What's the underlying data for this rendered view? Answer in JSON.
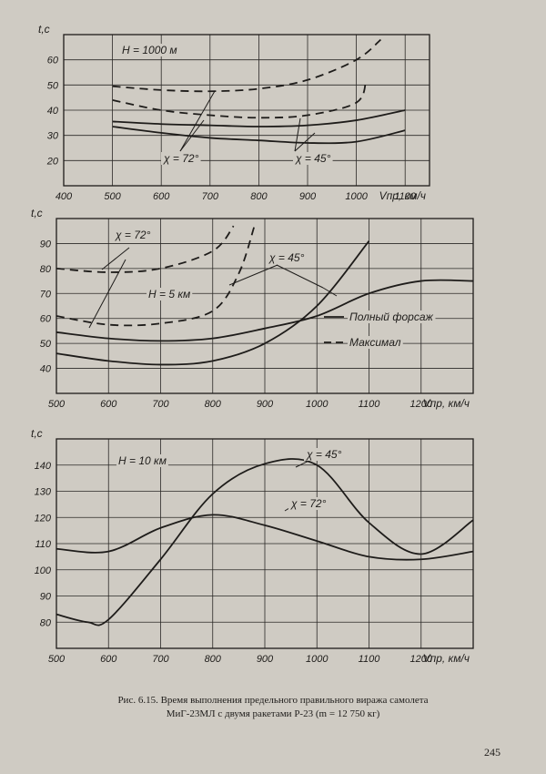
{
  "caption": {
    "line1": "Рис. 6.15. Время выполнения предельного правильного виража самолета",
    "line2": "МиГ-23МЛ с двумя ракетами Р-23 (m = 12 750 кг)"
  },
  "page_number": "245",
  "chart_data": [
    {
      "type": "line",
      "ylabel": "t,c",
      "xlabel": "Vпр, км/ч",
      "xlim": [
        400,
        1150
      ],
      "ylim": [
        10,
        70
      ],
      "x_ticks": [
        400,
        500,
        600,
        700,
        800,
        900,
        1000,
        1100
      ],
      "y_ticks": [
        20,
        30,
        40,
        50,
        60
      ],
      "grid": true,
      "annotations": [
        "H = 1000 м",
        "χ = 72°",
        "χ = 45°"
      ],
      "series": [
        {
          "style": "dashed",
          "x": [
            500,
            600,
            700,
            800,
            900,
            1000,
            1050
          ],
          "y": [
            49.5,
            48,
            47.5,
            48.5,
            52,
            60,
            68
          ]
        },
        {
          "style": "dashed",
          "x": [
            500,
            600,
            700,
            800,
            900,
            1000,
            1020
          ],
          "y": [
            44,
            40,
            38,
            37,
            38,
            43,
            52
          ]
        },
        {
          "style": "solid",
          "x": [
            500,
            600,
            700,
            800,
            900,
            1000,
            1100
          ],
          "y": [
            35.5,
            34.5,
            34,
            33.5,
            34,
            36,
            40
          ]
        },
        {
          "style": "solid",
          "x": [
            500,
            600,
            700,
            800,
            900,
            1000,
            1100
          ],
          "y": [
            33.5,
            31,
            29,
            28,
            27,
            27.5,
            32
          ]
        }
      ]
    },
    {
      "type": "line",
      "ylabel": "t,c",
      "xlabel": "Vпр, км/ч",
      "xlim": [
        500,
        1300
      ],
      "ylim": [
        30,
        100
      ],
      "x_ticks": [
        500,
        600,
        700,
        800,
        900,
        1000,
        1100,
        1200
      ],
      "y_ticks": [
        40,
        50,
        60,
        70,
        80,
        90
      ],
      "grid": true,
      "annotations": [
        "χ = 72°",
        "χ = 45°",
        "H = 5 км"
      ],
      "legend": [
        {
          "style": "solid",
          "label": "Полный форсаж"
        },
        {
          "style": "dashed",
          "label": "Максимал"
        }
      ],
      "series": [
        {
          "style": "dashed",
          "x": [
            500,
            600,
            700,
            800,
            840
          ],
          "y": [
            80,
            78.5,
            80,
            87,
            97
          ]
        },
        {
          "style": "dashed",
          "x": [
            500,
            600,
            700,
            800,
            850,
            880
          ],
          "y": [
            61,
            57.5,
            58,
            63,
            78,
            97
          ]
        },
        {
          "style": "solid",
          "x": [
            500,
            600,
            700,
            800,
            900,
            1000,
            1100,
            1200,
            1300
          ],
          "y": [
            54.5,
            52,
            51,
            52,
            56,
            61,
            70,
            75,
            75
          ]
        },
        {
          "style": "solid",
          "x": [
            500,
            600,
            700,
            800,
            900,
            1000,
            1100
          ],
          "y": [
            46,
            43,
            41.5,
            43,
            50,
            65,
            91
          ]
        }
      ]
    },
    {
      "type": "line",
      "ylabel": "t,c",
      "xlabel": "Vпр, км/ч",
      "xlim": [
        500,
        1300
      ],
      "ylim": [
        70,
        150
      ],
      "x_ticks": [
        500,
        600,
        700,
        800,
        900,
        1000,
        1100,
        1200
      ],
      "y_ticks": [
        80,
        90,
        100,
        110,
        120,
        130,
        140
      ],
      "grid": true,
      "annotations": [
        "H = 10 км",
        "χ = 45°",
        "χ = 72°"
      ],
      "series": [
        {
          "style": "solid",
          "name": "χ = 45°",
          "x": [
            500,
            560,
            600,
            700,
            800,
            900,
            1000,
            1100,
            1200,
            1300
          ],
          "y": [
            83,
            80,
            81,
            104,
            129,
            140.5,
            140,
            118,
            106,
            119
          ]
        },
        {
          "style": "solid",
          "name": "χ = 72°",
          "x": [
            500,
            600,
            700,
            800,
            900,
            1000,
            1100,
            1200,
            1300
          ],
          "y": [
            108,
            107,
            116,
            121,
            117,
            111,
            105,
            104,
            107
          ]
        }
      ]
    }
  ]
}
